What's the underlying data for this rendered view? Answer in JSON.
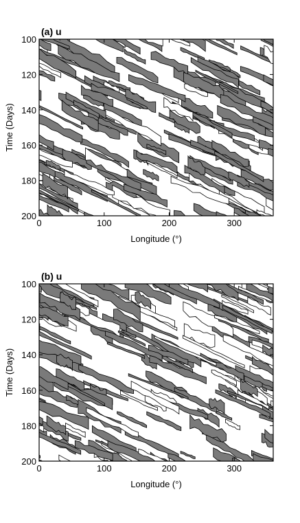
{
  "chart_data": [
    {
      "type": "contour",
      "title": "(a) u",
      "xlabel": "Longitude (°)",
      "ylabel": "Time (Days)",
      "xlim": [
        0,
        360
      ],
      "ylim": [
        100,
        200
      ],
      "y_inverted": true,
      "xticks": [
        0,
        100,
        200,
        300
      ],
      "yticks": [
        100,
        120,
        140,
        160,
        180,
        200
      ]
    },
    {
      "type": "contour",
      "title": "(b) u",
      "xlabel": "Longitude (°)",
      "ylabel": "Time (Days)",
      "xlim": [
        0,
        360
      ],
      "ylim": [
        100,
        200
      ],
      "y_inverted": true,
      "xticks": [
        0,
        100,
        200,
        300
      ],
      "yticks": [
        100,
        120,
        140,
        160,
        180,
        200
      ]
    }
  ]
}
